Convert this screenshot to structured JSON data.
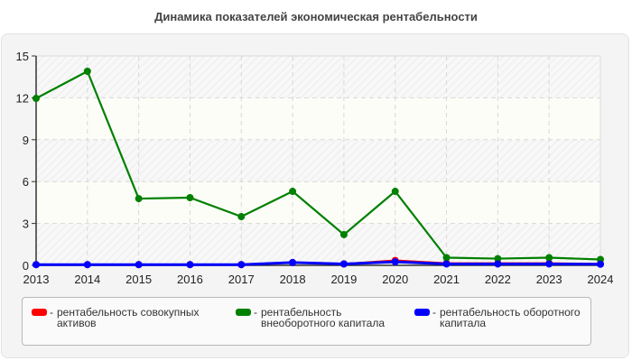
{
  "title": "Динамика показателей экономическая рентабельности",
  "legend": [
    {
      "color": "#ff0000",
      "label": "рентабельность совокупных активов"
    },
    {
      "color": "#008000",
      "label": "рентабельность внеоборотного капитала"
    },
    {
      "color": "#0000ff",
      "label": "рентабельность оборотного капитала"
    }
  ],
  "chart_data": {
    "type": "line",
    "title": "Динамика показателей экономическая рентабельности",
    "xlabel": "",
    "ylabel": "",
    "x": [
      "2013",
      "2014",
      "2015",
      "2016",
      "2017",
      "2018",
      "2019",
      "2020",
      "2021",
      "2022",
      "2023",
      "2024"
    ],
    "ylim": [
      0,
      15
    ],
    "yticks": [
      0,
      3,
      6,
      9,
      12,
      15
    ],
    "grid": true,
    "legend_position": "bottom",
    "series": [
      {
        "name": "рентабельность совокупных активов",
        "color": "#ff0000",
        "values": [
          0.05,
          0.05,
          0.05,
          0.05,
          0.05,
          0.2,
          0.1,
          0.35,
          0.15,
          0.15,
          0.15,
          0.1
        ]
      },
      {
        "name": "рентабельность внеоборотного капитала",
        "color": "#008000",
        "values": [
          11.96,
          13.9,
          4.78,
          4.85,
          3.49,
          5.3,
          2.2,
          5.3,
          0.55,
          0.48,
          0.55,
          0.42
        ]
      },
      {
        "name": "рентабельность оборотного капитала",
        "color": "#0000ff",
        "values": [
          0.05,
          0.05,
          0.05,
          0.05,
          0.05,
          0.2,
          0.1,
          0.25,
          0.1,
          0.1,
          0.1,
          0.08
        ]
      }
    ]
  }
}
